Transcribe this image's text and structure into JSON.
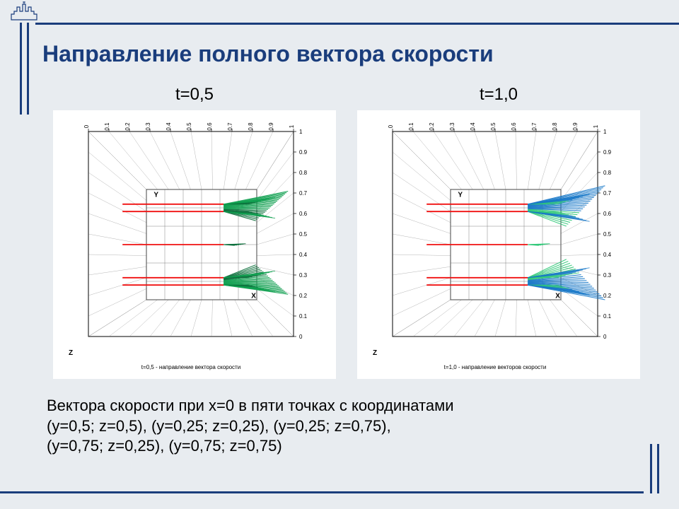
{
  "title": "Направление полного вектора скорости",
  "caption_line1": "Вектора скорости при x=0 в пяти точках с координатами",
  "caption_line2": "(y=0,5; z=0,5), (y=0,25; z=0,25), (y=0,25; z=0,75),",
  "caption_line3": "(y=0,75; z=0,25), (y=0,75; z=0,75)",
  "colors": {
    "frame": "#1a3d7c",
    "background": "#e8ecf0",
    "chart_bg": "#ffffff",
    "grid": "#666666",
    "red_line": "#f01010",
    "green_vec": "#10a050",
    "dark_green_vec": "#0a6e3a",
    "blue_vec": "#1878c8",
    "text": "#000000"
  },
  "axes": {
    "ticks": [
      0,
      0.1,
      0.2,
      0.3,
      0.4,
      0.5,
      0.6,
      0.7,
      0.8,
      0.9,
      1
    ],
    "xlabel": "X",
    "ylabel": "Y",
    "zlabel": "Z",
    "tick_fontsize": 8,
    "label_fontsize": 10
  },
  "inner_box": {
    "ymin": 0.2,
    "ymax": 0.8,
    "xmin": 0.2,
    "xmax": 0.8
  },
  "red_lines_y": [
    0.28,
    0.32,
    0.5,
    0.68,
    0.72
  ],
  "red_line_x_start": 0.07,
  "red_line_x_end": 0.62,
  "charts": [
    {
      "label": "t=0,5",
      "subtitle": "t=0,5 - направление вектора скорости",
      "fan_color_primary": "#10a050",
      "fan_color_secondary": "#0a6e3a",
      "fan_spread": 0.06,
      "fan_length": 0.35
    },
    {
      "label": "t=1,0",
      "subtitle": "t=1,0 - направление векторов скорости",
      "fan_color_primary": "#1878c8",
      "fan_color_secondary": "#30c878",
      "fan_spread": 0.09,
      "fan_length": 0.42
    }
  ]
}
